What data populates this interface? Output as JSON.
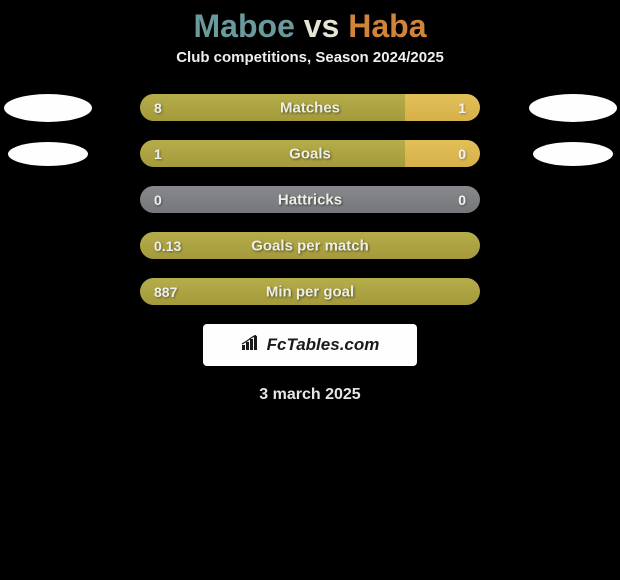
{
  "title": {
    "player1": "Maboe",
    "vs": "vs",
    "player2": "Haba"
  },
  "subtitle": "Club competitions, Season 2024/2025",
  "stats": [
    {
      "label": "Matches",
      "left_value": "8",
      "right_value": "1",
      "left_pct": 78,
      "right_pct": 22,
      "type": "split",
      "show_left_logo": true,
      "show_right_logo": true
    },
    {
      "label": "Goals",
      "left_value": "1",
      "right_value": "0",
      "left_pct": 78,
      "right_pct": 22,
      "type": "split",
      "show_left_logo": true,
      "show_right_logo": true
    },
    {
      "label": "Hattricks",
      "left_value": "0",
      "right_value": "0",
      "left_pct": 50,
      "right_pct": 50,
      "type": "neutral",
      "show_left_logo": false,
      "show_right_logo": false
    },
    {
      "label": "Goals per match",
      "left_value": "0.13",
      "right_value": "",
      "left_pct": 100,
      "right_pct": 0,
      "type": "full",
      "show_left_logo": false,
      "show_right_logo": false
    },
    {
      "label": "Min per goal",
      "left_value": "887",
      "right_value": "",
      "left_pct": 100,
      "right_pct": 0,
      "type": "full",
      "show_left_logo": false,
      "show_right_logo": false
    }
  ],
  "brand": "FcTables.com",
  "date": "3 march 2025",
  "colors": {
    "background": "#000000",
    "title_player1": "#6b9a9c",
    "title_vs": "#e8e4d4",
    "title_player2": "#d0843a",
    "bar_left": "#a49a3c",
    "bar_right": "#d6b14a",
    "bar_neutral": "#76777a",
    "text": "#edf0f1",
    "logo_bg": "#fefefe"
  }
}
